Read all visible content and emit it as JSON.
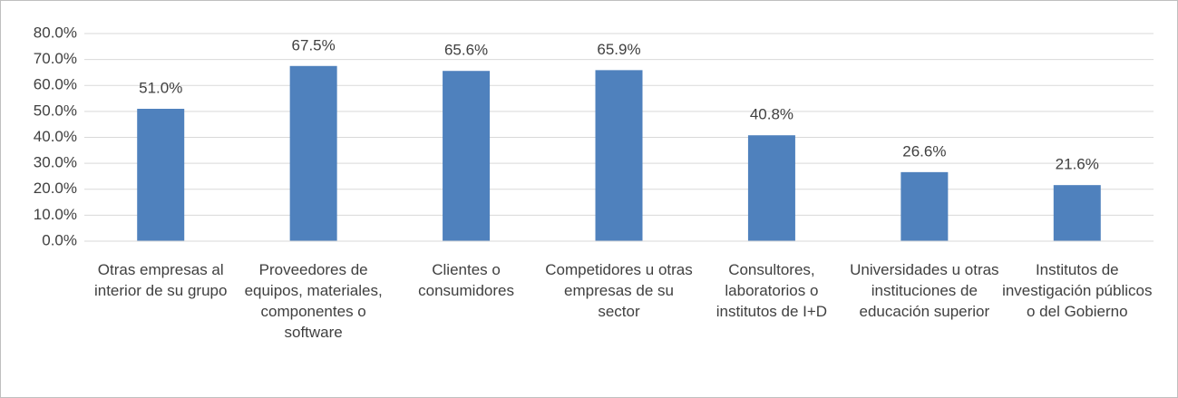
{
  "chart_data": {
    "type": "bar",
    "categories": [
      "Otras empresas al interior de su grupo",
      "Proveedores de equipos, materiales, componentes o software",
      "Clientes o consumidores",
      "Competidores u otras empresas de su sector",
      "Consultores, laboratorios o institutos de I+D",
      "Universidades u otras instituciones de educación superior",
      "Institutos de investigación públicos o del Gobierno"
    ],
    "values": [
      51.0,
      67.5,
      65.6,
      65.9,
      40.8,
      26.6,
      21.6
    ],
    "value_labels": [
      "51.0%",
      "67.5%",
      "65.6%",
      "65.9%",
      "40.8%",
      "26.6%",
      "21.6%"
    ],
    "color": "#4f81bd",
    "ylim": [
      0,
      80
    ],
    "yticks": [
      {
        "value": 0,
        "label": "0.0%"
      },
      {
        "value": 10,
        "label": "10.0%"
      },
      {
        "value": 20,
        "label": "20.0%"
      },
      {
        "value": 30,
        "label": "30.0%"
      },
      {
        "value": 40,
        "label": "40.0%"
      },
      {
        "value": 50,
        "label": "50.0%"
      },
      {
        "value": 60,
        "label": "60.0%"
      },
      {
        "value": 70,
        "label": "70.0%"
      },
      {
        "value": 80,
        "label": "80.0%"
      }
    ],
    "grid": true
  }
}
